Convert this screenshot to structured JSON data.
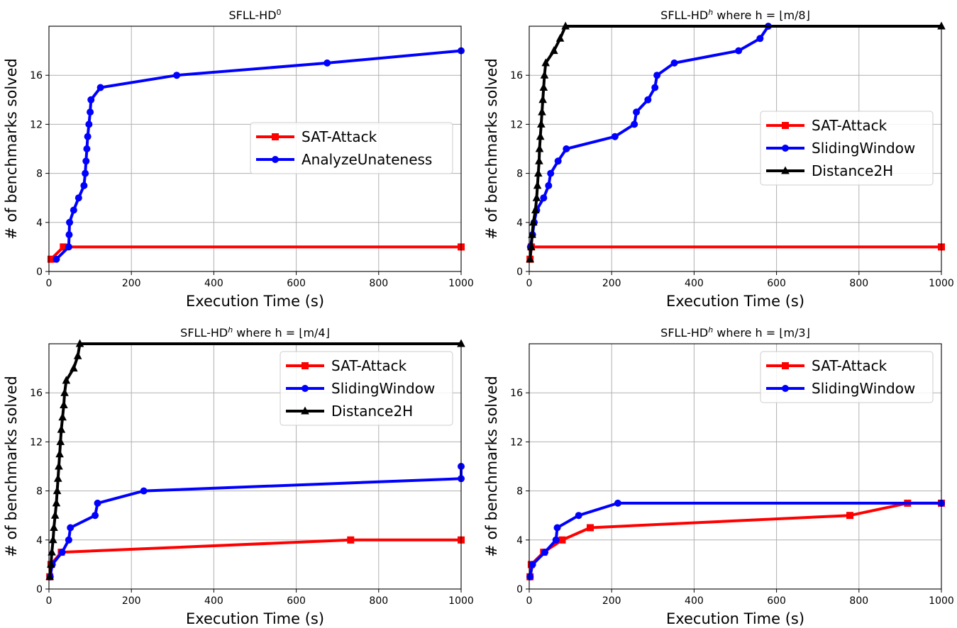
{
  "chart_data": [
    {
      "type": "line",
      "title": "SFLL-HD",
      "title_sup": "0",
      "title_suffix": "",
      "xlabel": "Execution Time (s)",
      "ylabel": "# of benchmarks solved",
      "xlim": [
        0,
        1000
      ],
      "ylim": [
        0,
        20
      ],
      "xticks": [
        0,
        200,
        400,
        600,
        800,
        1000
      ],
      "yticks": [
        0,
        4,
        8,
        12,
        16
      ],
      "grid": true,
      "legend_position": "center-right",
      "series": [
        {
          "name": "SAT-Attack",
          "color": "#ff0000",
          "marker": "square",
          "points": [
            [
              5,
              1
            ],
            [
              35,
              2
            ],
            [
              1000,
              2
            ]
          ]
        },
        {
          "name": "AnalyzeUnateness",
          "color": "#0000ff",
          "marker": "circle",
          "points": [
            [
              18,
              1
            ],
            [
              48,
              2
            ],
            [
              49,
              3
            ],
            [
              50,
              4
            ],
            [
              60,
              5
            ],
            [
              72,
              6
            ],
            [
              85,
              7
            ],
            [
              88,
              8
            ],
            [
              90,
              9
            ],
            [
              92,
              10
            ],
            [
              94,
              11
            ],
            [
              97,
              12
            ],
            [
              100,
              13
            ],
            [
              102,
              14
            ],
            [
              125,
              15
            ],
            [
              310,
              16
            ],
            [
              675,
              17
            ],
            [
              1000,
              18
            ]
          ]
        }
      ]
    },
    {
      "type": "line",
      "title": "SFLL-HD",
      "title_sup": "h",
      "title_suffix": " where h = ⌊m/8⌋",
      "xlabel": "Execution Time (s)",
      "ylabel": "# of benchmarks solved",
      "xlim": [
        0,
        1000
      ],
      "ylim": [
        0,
        20
      ],
      "xticks": [
        0,
        200,
        400,
        600,
        800,
        1000
      ],
      "yticks": [
        0,
        4,
        8,
        12,
        16
      ],
      "grid": true,
      "legend_position": "center-right",
      "series": [
        {
          "name": "SAT-Attack",
          "color": "#ff0000",
          "marker": "square",
          "points": [
            [
              2,
              1
            ],
            [
              5,
              2
            ],
            [
              1000,
              2
            ]
          ]
        },
        {
          "name": "SlidingWindow",
          "color": "#0000ff",
          "marker": "circle",
          "points": [
            [
              3,
              2
            ],
            [
              8,
              3
            ],
            [
              12,
              4
            ],
            [
              18,
              5
            ],
            [
              35,
              6
            ],
            [
              47,
              7
            ],
            [
              52,
              8
            ],
            [
              70,
              9
            ],
            [
              90,
              10
            ],
            [
              208,
              11
            ],
            [
              255,
              12
            ],
            [
              260,
              13
            ],
            [
              288,
              14
            ],
            [
              305,
              15
            ],
            [
              310,
              16
            ],
            [
              352,
              17
            ],
            [
              508,
              18
            ],
            [
              560,
              19
            ],
            [
              580,
              20
            ]
          ]
        },
        {
          "name": "Distance2H",
          "color": "#000000",
          "marker": "triangle",
          "points": [
            [
              2,
              1
            ],
            [
              5,
              2
            ],
            [
              7,
              3
            ],
            [
              10,
              4
            ],
            [
              15,
              5
            ],
            [
              18,
              6
            ],
            [
              20,
              7
            ],
            [
              22,
              8
            ],
            [
              24,
              9
            ],
            [
              25,
              10
            ],
            [
              27,
              11
            ],
            [
              29,
              12
            ],
            [
              31,
              13
            ],
            [
              33,
              14
            ],
            [
              35,
              15
            ],
            [
              37,
              16
            ],
            [
              40,
              17
            ],
            [
              60,
              18
            ],
            [
              75,
              19
            ],
            [
              88,
              20
            ],
            [
              1000,
              20
            ]
          ]
        }
      ]
    },
    {
      "type": "line",
      "title": "SFLL-HD",
      "title_sup": "h",
      "title_suffix": " where h = ⌊m/4⌋",
      "xlabel": "Execution Time (s)",
      "ylabel": "# of benchmarks solved",
      "xlim": [
        0,
        1000
      ],
      "ylim": [
        0,
        20
      ],
      "xticks": [
        0,
        200,
        400,
        600,
        800,
        1000
      ],
      "yticks": [
        0,
        4,
        8,
        12,
        16
      ],
      "grid": true,
      "legend_position": "upper-right",
      "series": [
        {
          "name": "SAT-Attack",
          "color": "#ff0000",
          "marker": "square",
          "points": [
            [
              2,
              1
            ],
            [
              5,
              2
            ],
            [
              30,
              3
            ],
            [
              732,
              4
            ],
            [
              1000,
              4
            ]
          ]
        },
        {
          "name": "SlidingWindow",
          "color": "#0000ff",
          "marker": "circle",
          "points": [
            [
              3,
              1
            ],
            [
              8,
              2
            ],
            [
              32,
              3
            ],
            [
              48,
              4
            ],
            [
              52,
              5
            ],
            [
              112,
              6
            ],
            [
              118,
              7
            ],
            [
              230,
              8
            ],
            [
              1000,
              9
            ],
            [
              1000,
              10
            ]
          ]
        },
        {
          "name": "Distance2H",
          "color": "#000000",
          "marker": "triangle",
          "points": [
            [
              2,
              1
            ],
            [
              5,
              2
            ],
            [
              7,
              3
            ],
            [
              10,
              4
            ],
            [
              12,
              5
            ],
            [
              15,
              6
            ],
            [
              18,
              7
            ],
            [
              20,
              8
            ],
            [
              22,
              9
            ],
            [
              24,
              10
            ],
            [
              26,
              11
            ],
            [
              28,
              12
            ],
            [
              30,
              13
            ],
            [
              33,
              14
            ],
            [
              36,
              15
            ],
            [
              38,
              16
            ],
            [
              42,
              17
            ],
            [
              60,
              18
            ],
            [
              70,
              19
            ],
            [
              75,
              20
            ],
            [
              1000,
              20
            ]
          ]
        }
      ]
    },
    {
      "type": "line",
      "title": "SFLL-HD",
      "title_sup": "h",
      "title_suffix": " where h = ⌊m/3⌋",
      "xlabel": "Execution Time (s)",
      "ylabel": "# of benchmarks solved",
      "xlim": [
        0,
        1000
      ],
      "ylim": [
        0,
        20
      ],
      "xticks": [
        0,
        200,
        400,
        600,
        800,
        1000
      ],
      "yticks": [
        0,
        4,
        8,
        12,
        16
      ],
      "grid": true,
      "legend_position": "upper-right",
      "series": [
        {
          "name": "SAT-Attack",
          "color": "#ff0000",
          "marker": "square",
          "points": [
            [
              2,
              1
            ],
            [
              5,
              2
            ],
            [
              35,
              3
            ],
            [
              80,
              4
            ],
            [
              148,
              5
            ],
            [
              778,
              6
            ],
            [
              918,
              7
            ],
            [
              1000,
              7
            ]
          ]
        },
        {
          "name": "SlidingWindow",
          "color": "#0000ff",
          "marker": "circle",
          "points": [
            [
              2,
              1
            ],
            [
              8,
              2
            ],
            [
              38,
              3
            ],
            [
              65,
              4
            ],
            [
              68,
              5
            ],
            [
              120,
              6
            ],
            [
              215,
              7
            ],
            [
              1000,
              7
            ]
          ]
        }
      ]
    }
  ]
}
